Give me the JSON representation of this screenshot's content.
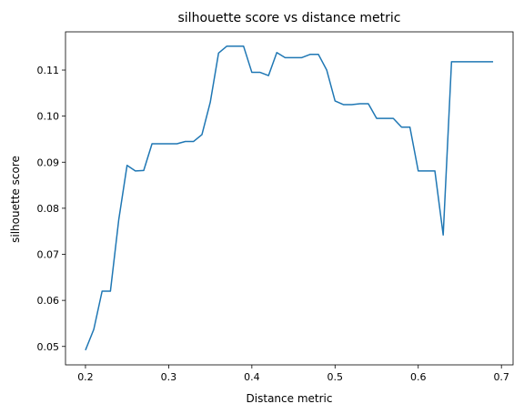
{
  "chart_data": {
    "type": "line",
    "title": "silhouette score vs distance metric",
    "xlabel": "Distance metric",
    "ylabel": "silhouette score",
    "xlim": [
      0.176,
      0.714
    ],
    "ylim": [
      0.046,
      0.1183
    ],
    "xticks": [
      0.2,
      0.3,
      0.4,
      0.5,
      0.6,
      0.7
    ],
    "xtick_labels": [
      "0.2",
      "0.3",
      "0.4",
      "0.5",
      "0.6",
      "0.7"
    ],
    "yticks": [
      0.05,
      0.06,
      0.07,
      0.08,
      0.09,
      0.1,
      0.11
    ],
    "ytick_labels": [
      "0.05",
      "0.06",
      "0.07",
      "0.08",
      "0.09",
      "0.10",
      "0.11"
    ],
    "grid": false,
    "series": [
      {
        "color": "#1f77b4",
        "x": [
          0.2,
          0.21,
          0.22,
          0.23,
          0.24,
          0.25,
          0.26,
          0.27,
          0.28,
          0.29,
          0.3,
          0.31,
          0.32,
          0.33,
          0.34,
          0.35,
          0.36,
          0.37,
          0.38,
          0.39,
          0.4,
          0.41,
          0.42,
          0.43,
          0.44,
          0.45,
          0.46,
          0.47,
          0.48,
          0.49,
          0.5,
          0.51,
          0.52,
          0.53,
          0.54,
          0.55,
          0.56,
          0.57,
          0.58,
          0.59,
          0.6,
          0.61,
          0.62,
          0.63,
          0.64,
          0.65,
          0.66,
          0.67,
          0.68,
          0.69
        ],
        "y": [
          0.0492,
          0.0537,
          0.062,
          0.062,
          0.0775,
          0.0893,
          0.0881,
          0.0882,
          0.094,
          0.094,
          0.094,
          0.094,
          0.0945,
          0.0945,
          0.096,
          0.103,
          0.1137,
          0.1152,
          0.1152,
          0.1152,
          0.1095,
          0.1095,
          0.1088,
          0.1138,
          0.1127,
          0.1127,
          0.1127,
          0.1134,
          0.1134,
          0.11,
          0.1033,
          0.1025,
          0.1025,
          0.1027,
          0.1027,
          0.0995,
          0.0995,
          0.0995,
          0.0976,
          0.0976,
          0.0881,
          0.0881,
          0.0881,
          0.0742,
          0.1118,
          0.1118,
          0.1118,
          0.1118,
          0.1118,
          0.1118
        ]
      }
    ]
  }
}
